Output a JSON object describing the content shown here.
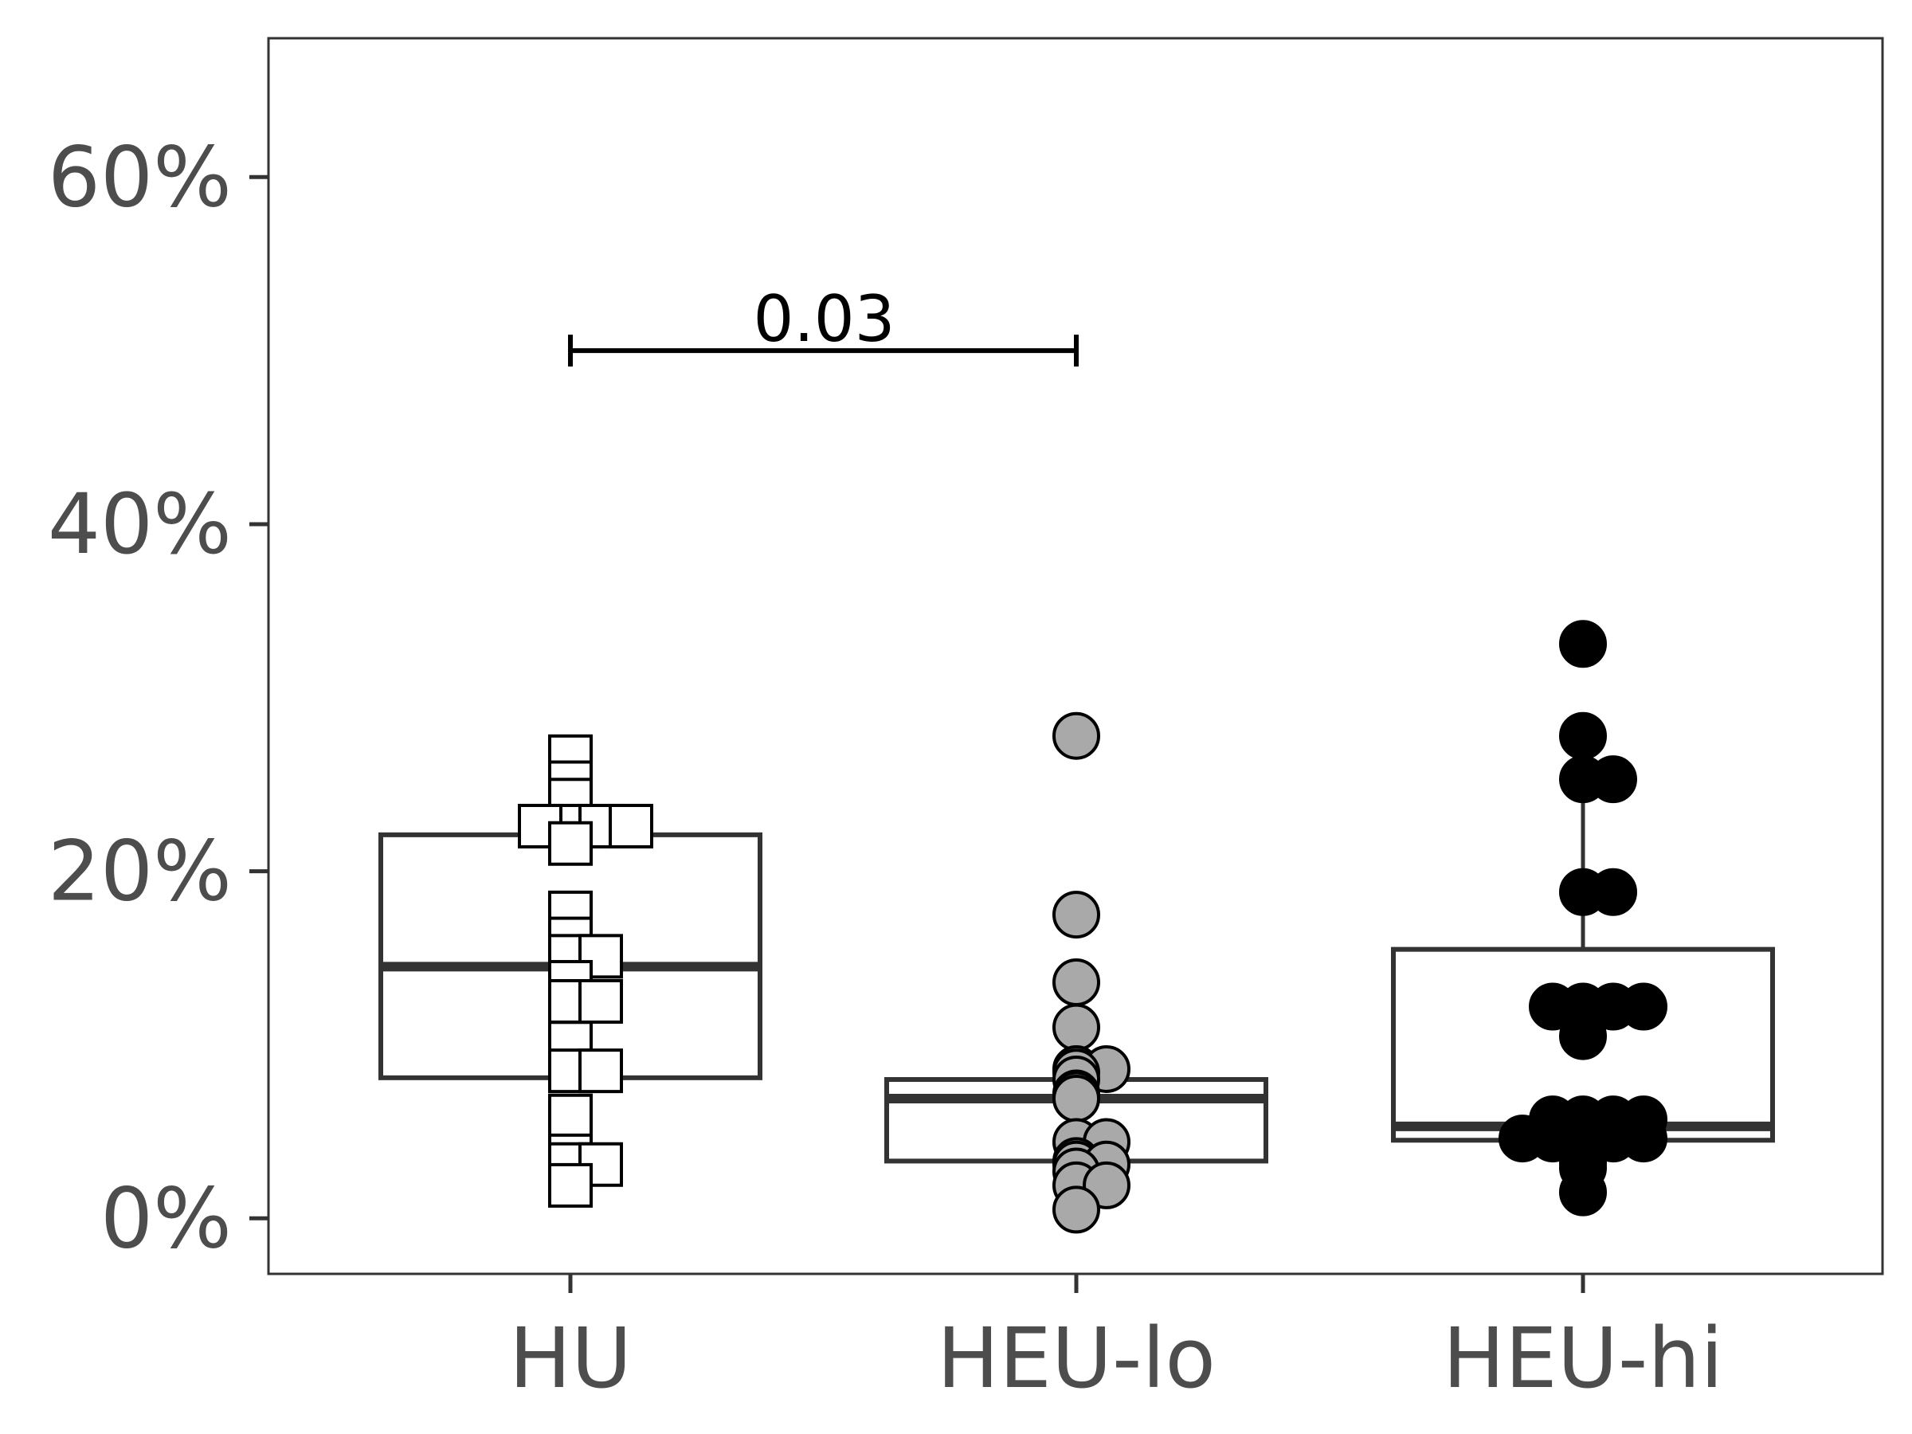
{
  "chart_data": {
    "type": "box-dotplot",
    "title": "",
    "xlabel": "",
    "ylabel": "",
    "ylim": [
      -0.032,
      0.68
    ],
    "y_ticks": [
      0,
      0.2,
      0.4,
      0.6
    ],
    "y_tick_labels": [
      "0%",
      "20%",
      "40%",
      "60%"
    ],
    "grid": false,
    "categories": [
      "HU",
      "HEU-lo",
      "HEU-hi"
    ],
    "boxes": [
      {
        "category": "HU",
        "lower": 0.081,
        "q1": 0.081,
        "median": 0.145,
        "q3": 0.221,
        "upper": 0.221
      },
      {
        "category": "HEU-lo",
        "lower": 0.033,
        "q1": 0.033,
        "median": 0.069,
        "q3": 0.08,
        "upper": 0.08
      },
      {
        "category": "HEU-hi",
        "lower": 0.045,
        "q1": 0.045,
        "median": 0.053,
        "q3": 0.155,
        "upper": 0.24
      }
    ],
    "points": [
      {
        "category": "HU",
        "shape": "square",
        "fill": "#ffffff",
        "values": [
          0.266,
          0.251,
          0.241,
          0.226,
          0.226,
          0.226,
          0.226,
          0.216,
          0.176,
          0.161,
          0.151,
          0.151,
          0.136,
          0.125,
          0.125,
          0.101,
          0.085,
          0.085,
          0.059,
          0.036,
          0.031,
          0.031,
          0.019
        ]
      },
      {
        "category": "HEU-lo",
        "shape": "circle",
        "fill": "#a9a9a9",
        "values": [
          0.278,
          0.175,
          0.136,
          0.11,
          0.086,
          0.086,
          0.084,
          0.08,
          0.072,
          0.071,
          0.069,
          0.044,
          0.044,
          0.033,
          0.031,
          0.031,
          0.027,
          0.019,
          0.019,
          0.005
        ]
      },
      {
        "category": "HEU-hi",
        "shape": "circle",
        "fill": "#000000",
        "values": [
          0.331,
          0.278,
          0.253,
          0.253,
          0.188,
          0.188,
          0.122,
          0.122,
          0.122,
          0.122,
          0.105,
          0.057,
          0.057,
          0.057,
          0.057,
          0.046,
          0.046,
          0.046,
          0.046,
          0.046,
          0.04,
          0.032,
          0.029,
          0.015
        ]
      }
    ],
    "annotations": [
      {
        "from": "HU",
        "to": "HEU-lo",
        "y": 0.5,
        "label": "0.03"
      }
    ],
    "colors": {
      "box": "#333333",
      "panel_border": "#333333",
      "tick_text": "#4d4d4d",
      "annotation": "#000000"
    }
  }
}
